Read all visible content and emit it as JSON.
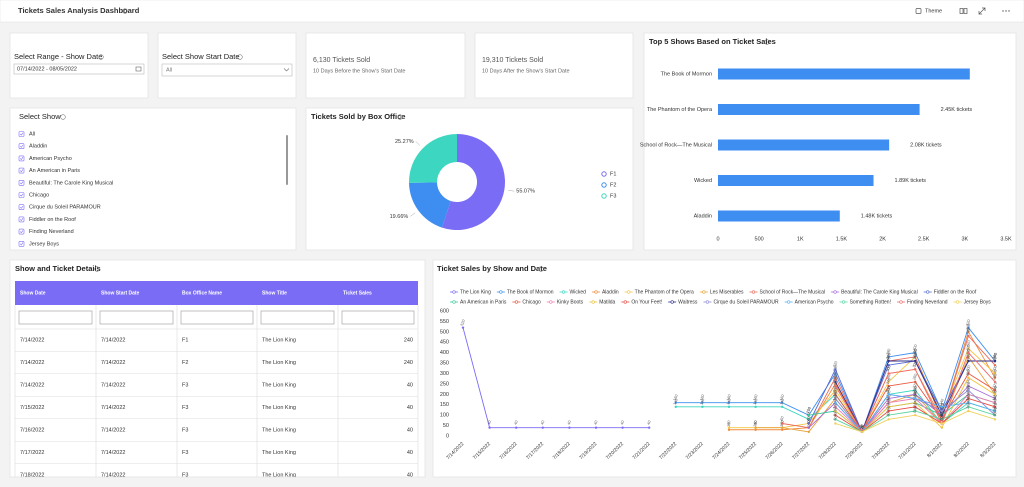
{
  "header": {
    "title": "Tickets Sales Analysis Dashboard",
    "theme": "Theme"
  },
  "filters": {
    "date_range": {
      "label": "Select Range - Show Date",
      "value": "07/14/2022 - 08/05/2022"
    },
    "start_date": {
      "label": "Select Show Start Date",
      "value": "All"
    }
  },
  "kpis": [
    {
      "value": "6,130 Tickets Sold",
      "caption": "10 Days Before the Show's Start Date"
    },
    {
      "value": "19,310 Tickets Sold",
      "caption": "10 Days After the Show's Start Date"
    }
  ],
  "show_list": {
    "title": "Select Show",
    "items": [
      "All",
      "Aladdin",
      "American Psycho",
      "An American in Paris",
      "Beautiful: The Carole King Musical",
      "Chicago",
      "Cirque du Soleil PARAMOUR",
      "Fiddler on the Roof",
      "Finding Neverland",
      "Jersey Boys"
    ]
  },
  "table": {
    "title": "Show and Ticket Details",
    "columns": [
      "Show Date",
      "Show Start Date",
      "Box Office Name",
      "Show Title",
      "Ticket Sales"
    ],
    "rows": [
      [
        "7/14/2022",
        "7/14/2022",
        "F1",
        "The Lion King",
        240
      ],
      [
        "7/14/2022",
        "7/14/2022",
        "F2",
        "The Lion King",
        240
      ],
      [
        "7/14/2022",
        "7/14/2022",
        "F3",
        "The Lion King",
        40
      ],
      [
        "7/15/2022",
        "7/14/2022",
        "F3",
        "The Lion King",
        40
      ],
      [
        "7/16/2022",
        "7/14/2022",
        "F3",
        "The Lion King",
        40
      ],
      [
        "7/17/2022",
        "7/14/2022",
        "F3",
        "The Lion King",
        40
      ],
      [
        "7/18/2022",
        "7/14/2022",
        "F3",
        "The Lion King",
        40
      ]
    ]
  },
  "chart_data": [
    {
      "type": "bar",
      "orientation": "horizontal",
      "title": "Top 5 Shows Based on Ticket Sales",
      "categories": [
        "The Book of Mormon",
        "The Phantom of the Opera",
        "School of Rock—The Musical",
        "Wicked",
        "Aladdin"
      ],
      "values": [
        3060,
        2450,
        2080,
        1890,
        1480
      ],
      "value_labels": [
        null,
        "2.45K tickets",
        "2.08K tickets",
        "1.89K tickets",
        "1.48K tickets"
      ],
      "color": "#3d8ef0",
      "xlim": [
        0,
        3500
      ],
      "xticks": [
        0,
        500,
        {
          "value": 1000,
          "label": "1K"
        },
        {
          "value": 1500,
          "label": "1.5K"
        },
        {
          "value": 2000,
          "label": "2K"
        },
        {
          "value": 2500,
          "label": "2.5K"
        },
        {
          "value": 3000,
          "label": "3K"
        },
        {
          "value": 3500,
          "label": "3.5K"
        }
      ]
    },
    {
      "type": "pie",
      "donut": true,
      "title": "Tickets Sold by Box Office",
      "categories": [
        "F1",
        "F2",
        "F3"
      ],
      "values": [
        55.07,
        19.66,
        25.27
      ],
      "value_labels": [
        "55.07%",
        "19.66%",
        "25.27%"
      ],
      "colors": [
        "#7b6cf6",
        "#3d8ef0",
        "#3dd6c0"
      ]
    },
    {
      "type": "line",
      "title": "Ticket Sales by Show and Date",
      "categories": [
        "7/14/2022",
        "7/15/2022",
        "7/16/2022",
        "7/17/2022",
        "7/18/2022",
        "7/19/2022",
        "7/20/2022",
        "7/21/2022",
        "7/22/2022",
        "7/23/2022",
        "7/24/2022",
        "7/25/2022",
        "7/26/2022",
        "7/27/2022",
        "7/28/2022",
        "7/29/2022",
        "7/30/2022",
        "7/31/2022",
        "8/1/2022",
        "8/2/2022",
        "8/3/2022"
      ],
      "ylim": [
        0,
        600
      ],
      "yticks": [
        0,
        50,
        100,
        150,
        200,
        250,
        300,
        350,
        400,
        450,
        500,
        550,
        600
      ],
      "series": [
        {
          "name": "The Lion King",
          "color": "#7b6cf6",
          "values": [
            520,
            40,
            40,
            40,
            40,
            40,
            40,
            40,
            null,
            null,
            null,
            null,
            null,
            null,
            null,
            null,
            null,
            null,
            null,
            null,
            null
          ]
        },
        {
          "name": "The Book of Mormon",
          "color": "#3d8ef0",
          "values": [
            null,
            null,
            null,
            null,
            null,
            null,
            null,
            null,
            160,
            160,
            160,
            160,
            160,
            100,
            300,
            20,
            380,
            400,
            120,
            520,
            360
          ]
        },
        {
          "name": "Wicked",
          "color": "#3dd6c0",
          "values": [
            null,
            null,
            null,
            null,
            null,
            null,
            null,
            null,
            140,
            140,
            140,
            140,
            140,
            80,
            200,
            20,
            200,
            220,
            60,
            160,
            120
          ]
        },
        {
          "name": "Aladdin",
          "color": "#f08a3d",
          "values": [
            null,
            null,
            null,
            null,
            null,
            null,
            null,
            null,
            null,
            null,
            30,
            30,
            30,
            40,
            250,
            20,
            300,
            320,
            80,
            500,
            280
          ]
        },
        {
          "name": "The Phantom of the Opera",
          "color": "#f5c542",
          "values": [
            null,
            null,
            null,
            null,
            null,
            null,
            null,
            null,
            null,
            null,
            40,
            40,
            40,
            60,
            220,
            20,
            260,
            380,
            100,
            420,
            300
          ]
        },
        {
          "name": "Les Miserables",
          "color": "#e8a33d",
          "values": [
            null,
            null,
            null,
            null,
            null,
            null,
            null,
            null,
            null,
            null,
            null,
            40,
            40,
            20,
            180,
            20,
            160,
            200,
            60,
            380,
            200
          ]
        },
        {
          "name": "School of Rock—The Musical",
          "color": "#e86a5a",
          "values": [
            null,
            null,
            null,
            null,
            null,
            null,
            null,
            null,
            null,
            null,
            null,
            null,
            60,
            40,
            280,
            20,
            360,
            380,
            80,
            480,
            340
          ]
        },
        {
          "name": "Beautiful: The Carole King Musical",
          "color": "#a66ad6",
          "values": [
            null,
            null,
            null,
            null,
            null,
            null,
            null,
            null,
            null,
            null,
            null,
            null,
            null,
            40,
            160,
            20,
            180,
            200,
            100,
            240,
            180
          ]
        },
        {
          "name": "Fiddler on the Roof",
          "color": "#5a6ad6",
          "values": [
            null,
            null,
            null,
            null,
            null,
            null,
            null,
            null,
            null,
            null,
            null,
            null,
            null,
            60,
            320,
            20,
            340,
            360,
            120,
            360,
            360
          ]
        },
        {
          "name": "An American in Paris",
          "color": "#3dc9a0",
          "values": [
            null,
            null,
            null,
            null,
            null,
            null,
            null,
            null,
            null,
            null,
            null,
            null,
            null,
            100,
            120,
            20,
            140,
            160,
            100,
            200,
            160
          ]
        },
        {
          "name": "Chicago",
          "color": "#e8553d",
          "values": [
            null,
            null,
            null,
            null,
            null,
            null,
            null,
            null,
            null,
            null,
            null,
            null,
            null,
            null,
            200,
            20,
            240,
            260,
            80,
            300,
            220
          ]
        },
        {
          "name": "Kinky Boots",
          "color": "#f07ab0",
          "values": [
            null,
            null,
            null,
            null,
            null,
            null,
            null,
            null,
            null,
            null,
            null,
            null,
            null,
            null,
            140,
            20,
            160,
            180,
            60,
            200,
            160
          ]
        },
        {
          "name": "Matilda",
          "color": "#f0c03d",
          "values": [
            null,
            null,
            null,
            null,
            null,
            null,
            null,
            null,
            null,
            null,
            null,
            null,
            null,
            null,
            120,
            20,
            140,
            160,
            40,
            280,
            200
          ]
        },
        {
          "name": "On Your Feet!",
          "color": "#e8483d",
          "values": [
            null,
            null,
            null,
            null,
            null,
            null,
            null,
            null,
            null,
            null,
            null,
            null,
            null,
            null,
            100,
            20,
            120,
            140,
            60,
            180,
            140
          ]
        },
        {
          "name": "Waitress",
          "color": "#2d2d8a",
          "values": [
            null,
            null,
            null,
            null,
            null,
            null,
            null,
            null,
            null,
            null,
            null,
            null,
            null,
            null,
            260,
            20,
            360,
            360,
            100,
            360,
            360
          ]
        },
        {
          "name": "Cirque du Soleil PARAMOUR",
          "color": "#8a8ad6",
          "values": [
            null,
            null,
            null,
            null,
            null,
            null,
            null,
            null,
            null,
            null,
            null,
            null,
            null,
            null,
            180,
            20,
            200,
            180,
            120,
            220,
            100
          ]
        },
        {
          "name": "American Psycho",
          "color": "#5ab0f0",
          "values": [
            null,
            null,
            null,
            null,
            null,
            null,
            null,
            null,
            null,
            null,
            null,
            null,
            null,
            null,
            160,
            20,
            200,
            180,
            140,
            160,
            120
          ]
        },
        {
          "name": "Something Rotten!",
          "color": "#5ad6a0",
          "values": [
            null,
            null,
            null,
            null,
            null,
            null,
            null,
            null,
            null,
            null,
            null,
            null,
            null,
            null,
            80,
            20,
            100,
            120,
            80,
            140,
            100
          ]
        },
        {
          "name": "Finding Neverland",
          "color": "#f06a6a",
          "values": [
            null,
            null,
            null,
            null,
            null,
            null,
            null,
            null,
            null,
            null,
            null,
            null,
            null,
            null,
            240,
            20,
            300,
            320,
            60,
            400,
            260
          ]
        },
        {
          "name": "Jersey Boys",
          "color": "#f0d05a",
          "values": [
            null,
            null,
            null,
            null,
            null,
            null,
            null,
            null,
            null,
            null,
            null,
            null,
            null,
            null,
            60,
            20,
            80,
            100,
            60,
            120,
            80
          ]
        }
      ]
    }
  ]
}
